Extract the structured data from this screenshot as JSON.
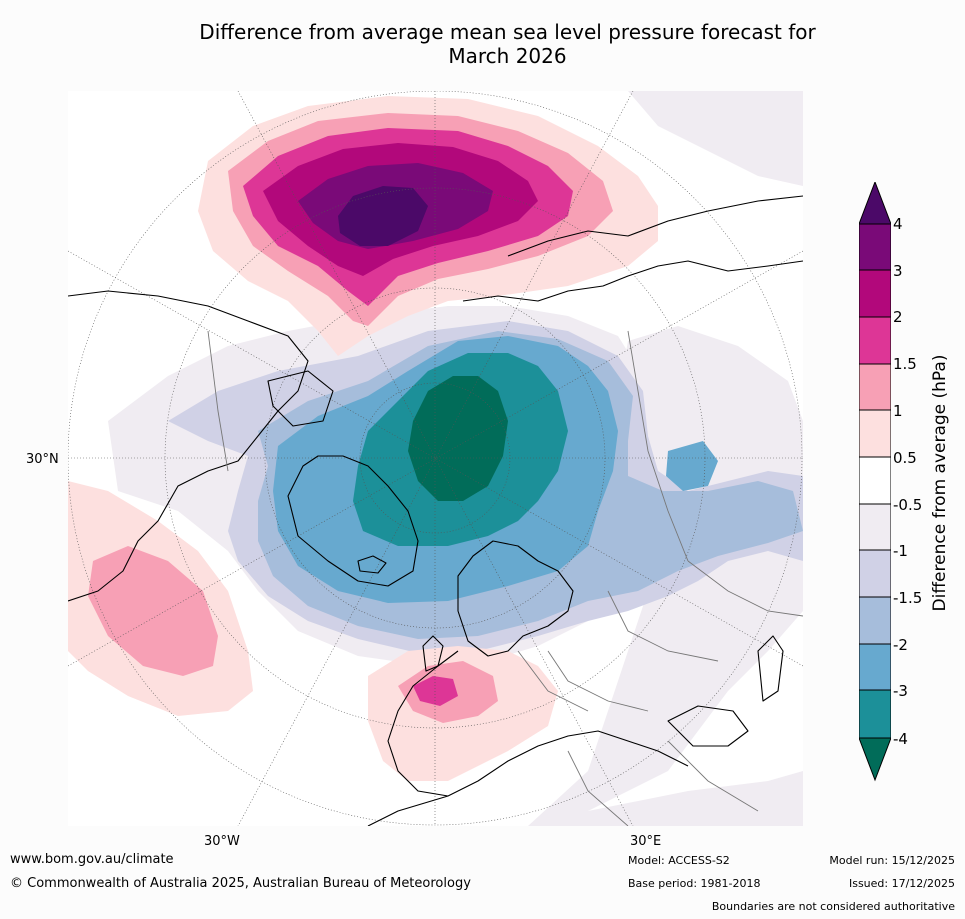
{
  "title_line1": "Difference from average mean sea level pressure forecast for",
  "title_line2": "March 2026",
  "lat_label": "30°N",
  "lon_labels": {
    "west": "30°W",
    "east": "30°E"
  },
  "colorbar": {
    "title": "Difference from average (hPa)",
    "ticks": [
      "4",
      "3",
      "2",
      "1.5",
      "1",
      "0.5",
      "-0.5",
      "-1",
      "-1.5",
      "-2",
      "-3",
      "-4"
    ],
    "colors": {
      "over": "#4b0968",
      "gt3": "#7a0a78",
      "c2_3": "#b2087b",
      "c1_5_2": "#dd3696",
      "c1_1_5": "#f7a0b5",
      "c05_1": "#fde0df",
      "neutral": "#ffffff",
      "cm1_m05": "#f0ecf2",
      "cm1_5_m1": "#d0d1e6",
      "cm2_m1_5": "#a6bddb",
      "cm3_m2": "#67a9cf",
      "cm4_m3": "#1c9099",
      "under": "#016c59"
    }
  },
  "footer": {
    "url": "www.bom.gov.au/climate",
    "copyright": "© Commonwealth of Australia 2025, Australian Bureau of Meteorology",
    "model": "Model: ACCESS-S2",
    "base_period": "Base period: 1981-2018",
    "model_run": "Model run: 15/12/2025",
    "issued": "Issued: 17/12/2025",
    "disclaimer": "Boundaries are not considered authoritative"
  }
}
